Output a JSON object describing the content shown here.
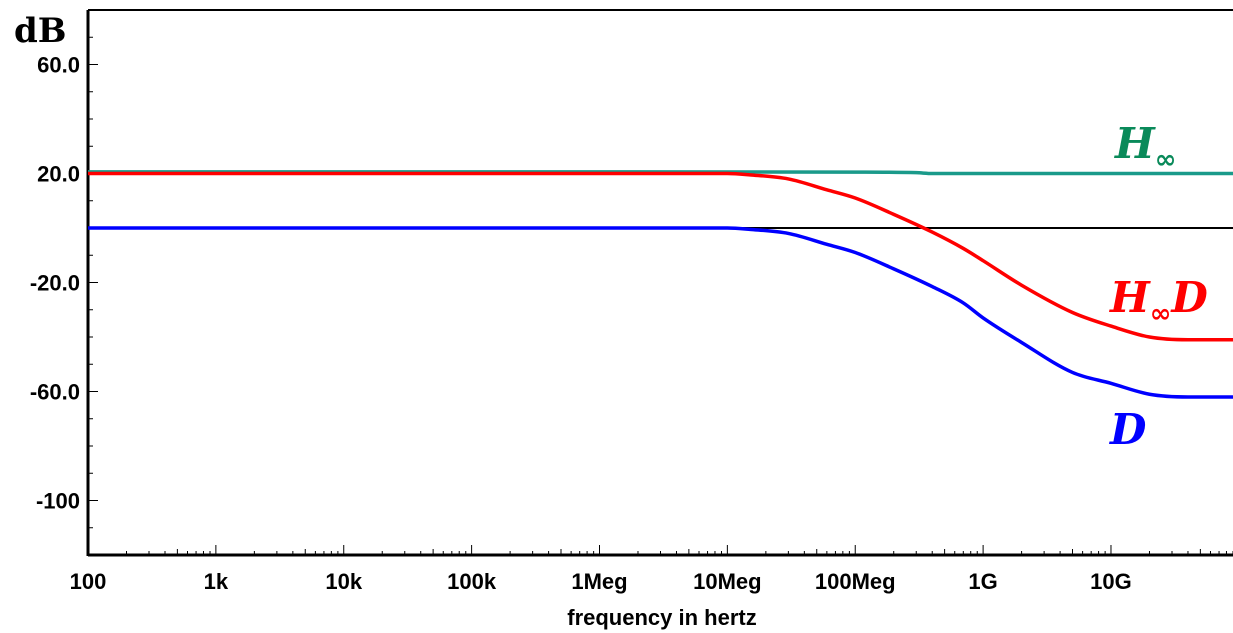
{
  "chart_data": {
    "type": "line",
    "ylabel": "dB",
    "xlabel": "frequency in hertz",
    "x_scale": "log",
    "xlim": [
      100,
      90000000000
    ],
    "ylim": [
      -120,
      80
    ],
    "x_ticks": [
      {
        "value": 100,
        "label": "100"
      },
      {
        "value": 1000,
        "label": "1k"
      },
      {
        "value": 10000,
        "label": "10k"
      },
      {
        "value": 100000,
        "label": "100k"
      },
      {
        "value": 1000000,
        "label": "1Meg"
      },
      {
        "value": 10000000,
        "label": "10Meg"
      },
      {
        "value": 100000000,
        "label": "100Meg"
      },
      {
        "value": 1000000000,
        "label": "1G"
      },
      {
        "value": 10000000000,
        "label": "10G"
      }
    ],
    "y_ticks": [
      {
        "value": 60,
        "label": "60.0"
      },
      {
        "value": 20,
        "label": "20.0"
      },
      {
        "value": -20,
        "label": "-20.0"
      },
      {
        "value": -60,
        "label": "-60.0"
      },
      {
        "value": -100,
        "label": "-100"
      }
    ],
    "reference_line": {
      "y": 0,
      "color": "#000000"
    },
    "series": [
      {
        "name": "H∞",
        "color": "#1a9a8a",
        "label_color": "#0a8a5a",
        "x": [
          100,
          1000000,
          100000000,
          300000000,
          400000000,
          1000000000,
          10000000000,
          90000000000
        ],
        "y": [
          20.6,
          20.6,
          20.5,
          20.3,
          20,
          20,
          20,
          20
        ]
      },
      {
        "name": "H∞D",
        "color": "#ff0000",
        "label_color": "#ff0000",
        "x": [
          100,
          10000000,
          15000000,
          30000000,
          60000000,
          100000000,
          200000000,
          400000000,
          700000000,
          1000000000,
          2000000000,
          5000000000,
          10000000000,
          20000000000,
          40000000000,
          90000000000
        ],
        "y": [
          20,
          20,
          19.5,
          18,
          14,
          11,
          5,
          -1.5,
          -7.5,
          -12,
          -21,
          -31,
          -36,
          -40,
          -41,
          -41
        ]
      },
      {
        "name": "D",
        "color": "#0000ff",
        "label_color": "#0000ff",
        "x": [
          100,
          10000000,
          15000000,
          30000000,
          60000000,
          100000000,
          200000000,
          400000000,
          700000000,
          1000000000,
          2000000000,
          5000000000,
          10000000000,
          20000000000,
          40000000000,
          90000000000
        ],
        "y": [
          0,
          0,
          -0.5,
          -2,
          -6,
          -9,
          -15,
          -21.5,
          -27.5,
          -33,
          -42,
          -53,
          -57,
          -61,
          -62,
          -62
        ]
      }
    ],
    "series_labels": [
      {
        "series": "H∞",
        "main": "H",
        "sub": "∞",
        "suffix": ""
      },
      {
        "series": "H∞D",
        "main": "H",
        "sub": "∞",
        "suffix": "D"
      },
      {
        "series": "D",
        "main": "D",
        "sub": "",
        "suffix": ""
      }
    ]
  }
}
